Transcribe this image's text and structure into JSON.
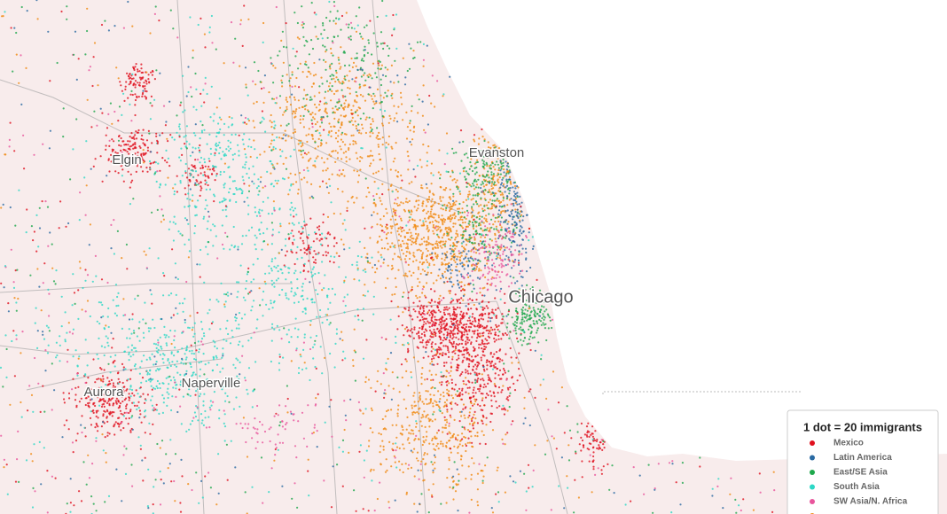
{
  "places": [
    "Evanston",
    "Chicago",
    "Elgin",
    "Naperville",
    "Aurora"
  ],
  "legend": {
    "title": "1 dot = 20 immigrants",
    "items": [
      {
        "name": "Mexico",
        "color": "#e0101e"
      },
      {
        "name": "Latin America",
        "color": "#2a6aa3"
      },
      {
        "name": "East/SE Asia",
        "color": "#1ea84c"
      },
      {
        "name": "South Asia",
        "color": "#2dd8c6"
      },
      {
        "name": "SW Asia/N. Africa",
        "color": "#e8559c"
      }
    ]
  }
}
